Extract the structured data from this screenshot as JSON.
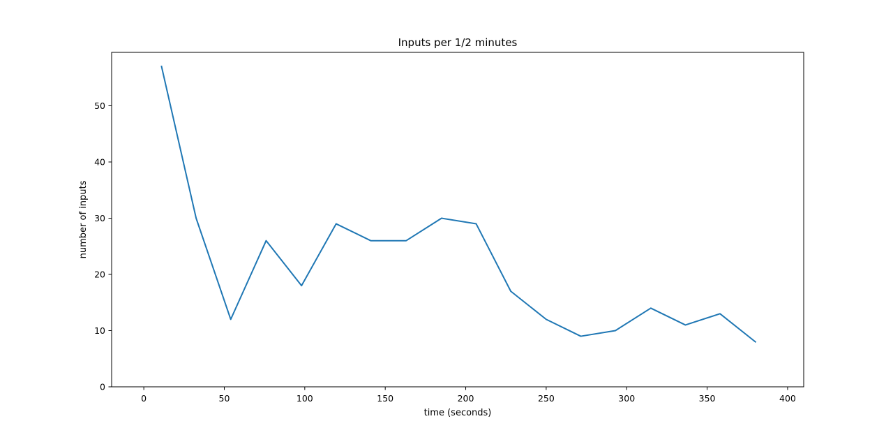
{
  "chart_data": {
    "type": "line",
    "title": "Inputs per 1/2 minutes",
    "xlabel": "time (seconds)",
    "ylabel": "number of inputs",
    "xlim": [
      -20,
      410
    ],
    "ylim": [
      0,
      59.5
    ],
    "xticks": [
      0,
      50,
      100,
      150,
      200,
      250,
      300,
      350,
      400
    ],
    "yticks": [
      0,
      10,
      20,
      30,
      40,
      50
    ],
    "grid": false,
    "series": [
      {
        "color": "#1f77b4",
        "x": [
          11,
          32.5,
          54,
          76,
          98,
          119.5,
          141,
          163,
          185,
          206.5,
          228,
          250,
          271.5,
          293,
          315,
          336.5,
          358,
          380
        ],
        "y": [
          57,
          30,
          12,
          26,
          18,
          29,
          26,
          26,
          30,
          29,
          17,
          12,
          9,
          10,
          14,
          11,
          13,
          8
        ]
      }
    ]
  }
}
